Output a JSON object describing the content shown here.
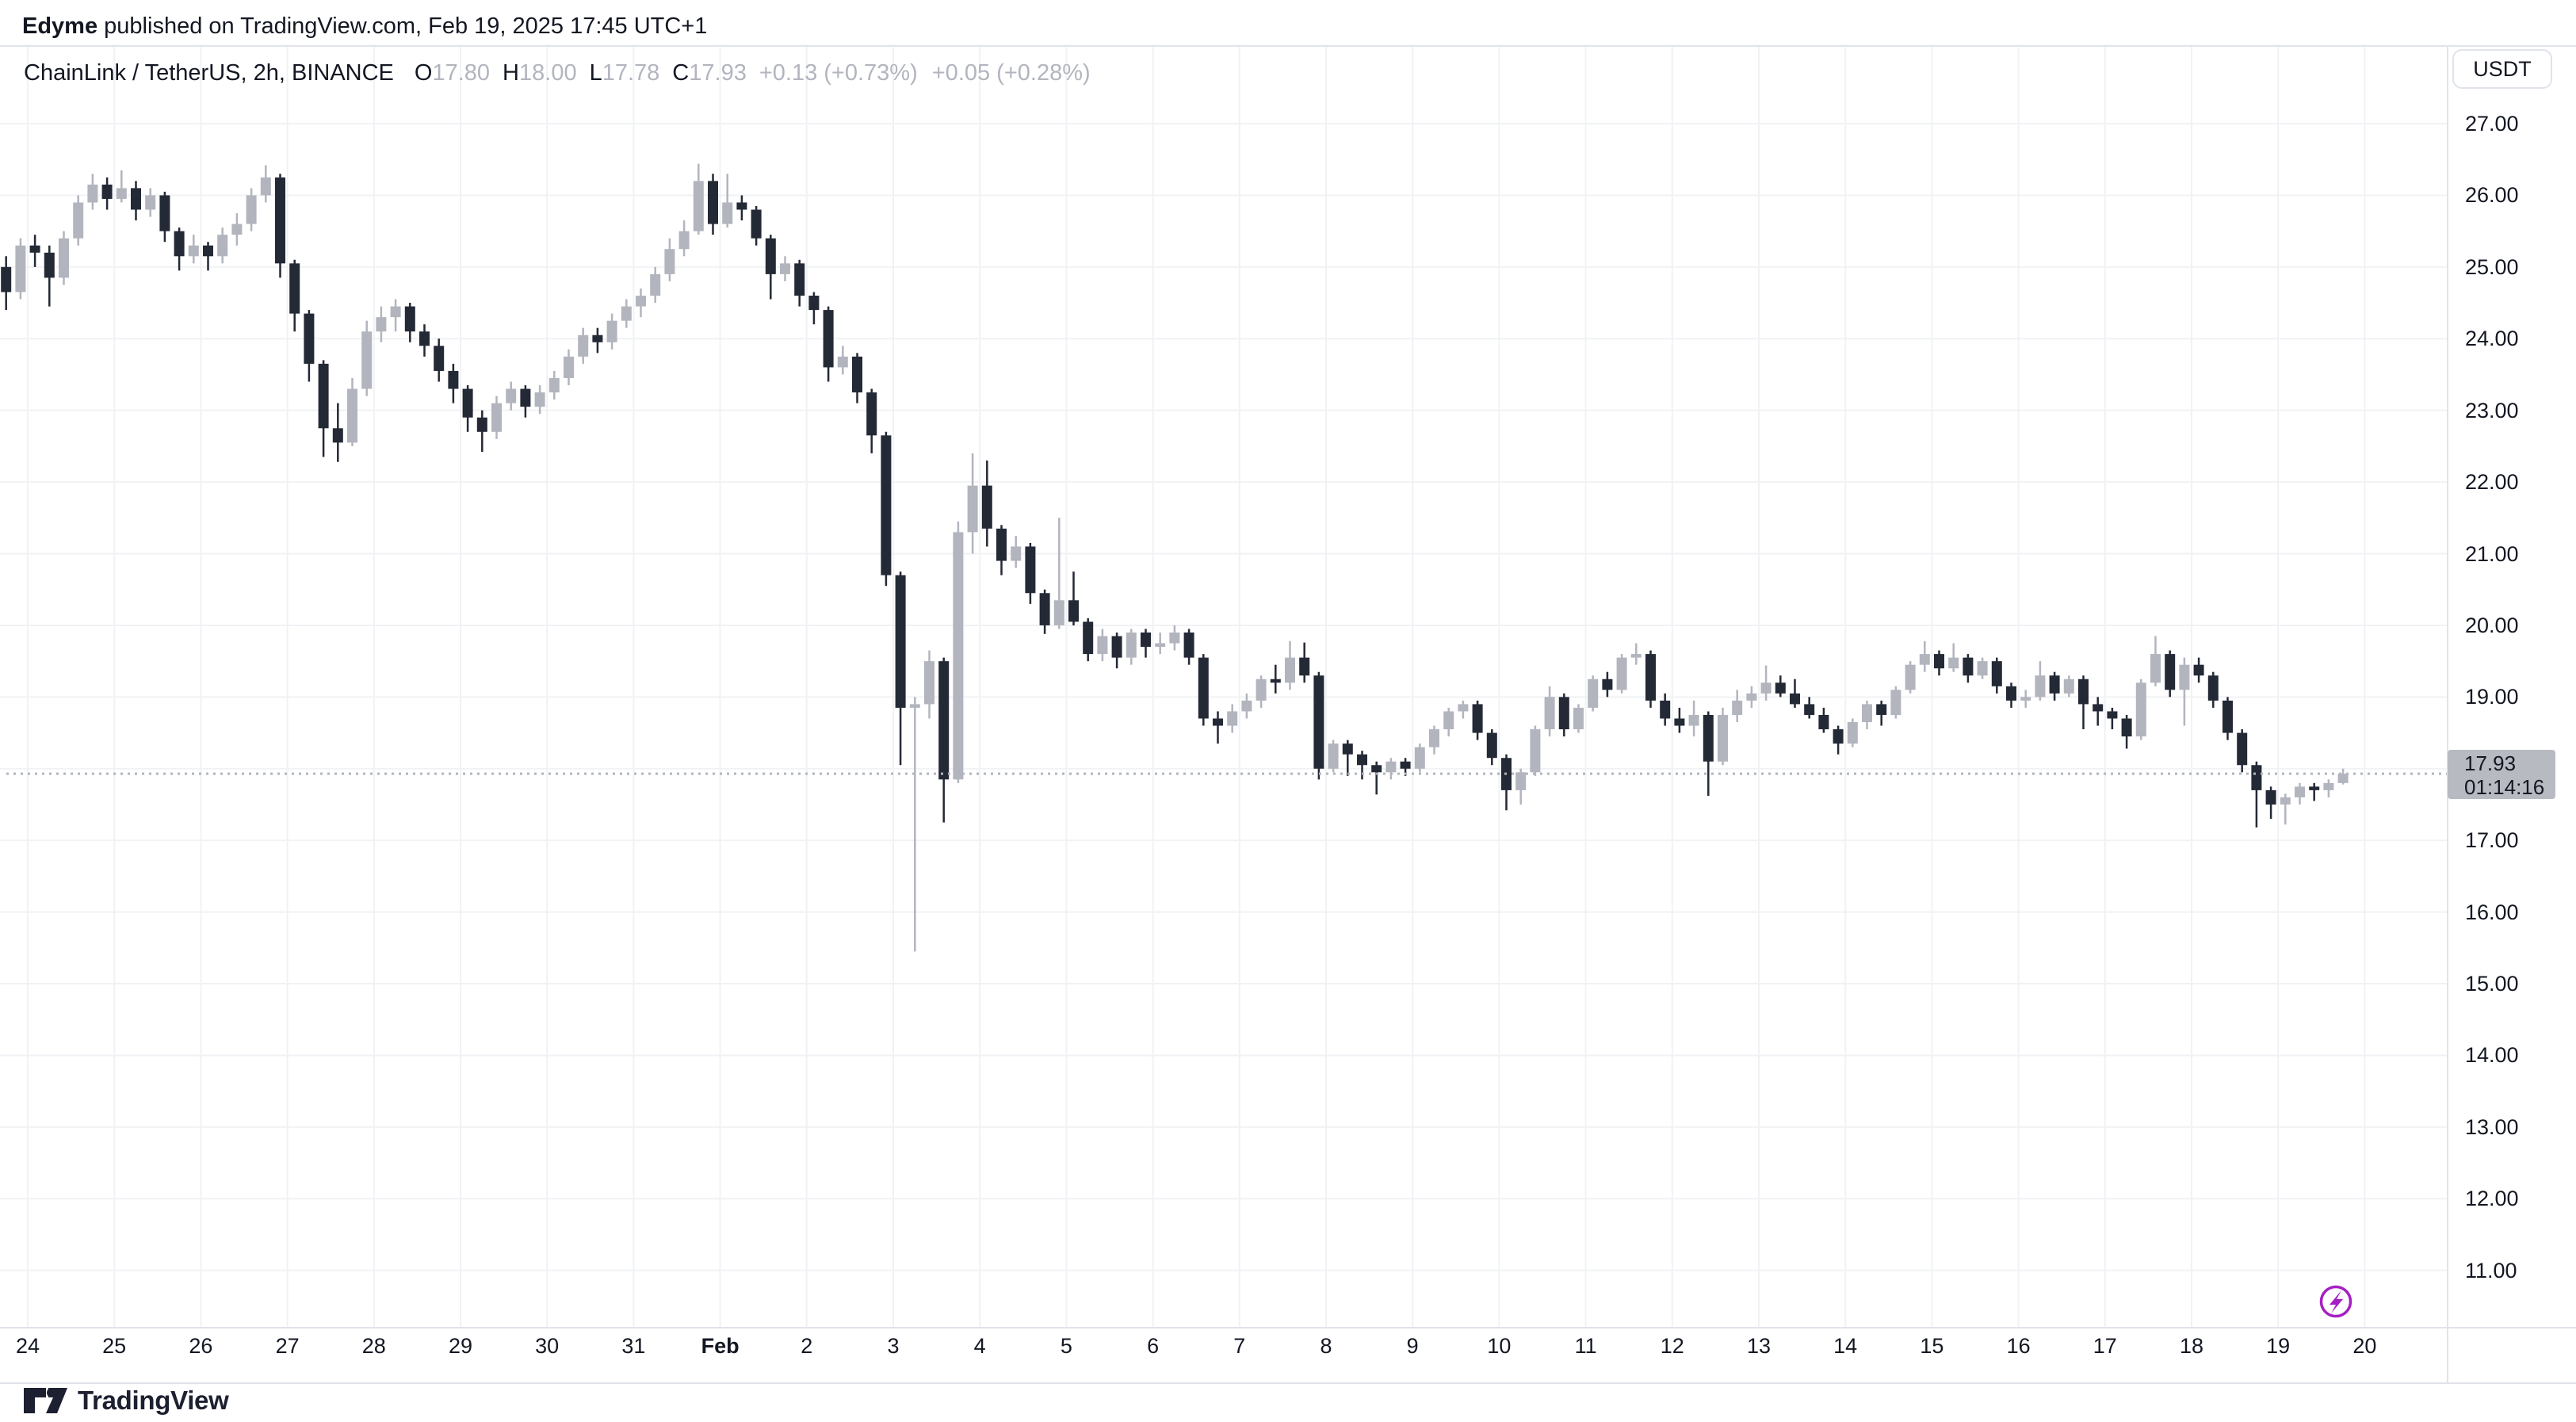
{
  "attribution": {
    "author": "Edyme",
    "rest": " published on TradingView.com, Feb 19, 2025 17:45 UTC+1"
  },
  "legend": {
    "symbol_title": "ChainLink / TetherUS, 2h, BINANCE",
    "ohlc": [
      {
        "label": "O",
        "value": "17.80"
      },
      {
        "label": "H",
        "value": "18.00"
      },
      {
        "label": "L",
        "value": "17.78"
      },
      {
        "label": "C",
        "value": "17.93"
      }
    ],
    "changes": [
      "+0.13 (+0.73%)",
      "+0.05 (+0.28%)"
    ]
  },
  "price_axis": {
    "currency_button_label": "USDT",
    "tick_labels": [
      "27.00",
      "26.00",
      "25.00",
      "24.00",
      "23.00",
      "22.00",
      "21.00",
      "20.00",
      "19.00",
      "18.00",
      "17.00",
      "16.00",
      "15.00",
      "14.00",
      "13.00",
      "12.00",
      "11.00"
    ],
    "current": {
      "price": "17.93",
      "countdown": "01:14:16"
    }
  },
  "time_axis": {
    "labels": [
      {
        "t": "24"
      },
      {
        "t": "25"
      },
      {
        "t": "26"
      },
      {
        "t": "27"
      },
      {
        "t": "28"
      },
      {
        "t": "29"
      },
      {
        "t": "30"
      },
      {
        "t": "31"
      },
      {
        "t": "Feb",
        "b": true
      },
      {
        "t": "2"
      },
      {
        "t": "3"
      },
      {
        "t": "4"
      },
      {
        "t": "5"
      },
      {
        "t": "6"
      },
      {
        "t": "7"
      },
      {
        "t": "8"
      },
      {
        "t": "9"
      },
      {
        "t": "10"
      },
      {
        "t": "11"
      },
      {
        "t": "12"
      },
      {
        "t": "13"
      },
      {
        "t": "14"
      },
      {
        "t": "15"
      },
      {
        "t": "16"
      },
      {
        "t": "17"
      },
      {
        "t": "18"
      },
      {
        "t": "19"
      },
      {
        "t": "20"
      }
    ]
  },
  "footer": {
    "logo_text": "TradingView"
  },
  "status_icon": {
    "name": "realtime-lightning",
    "color": "#a61fc4"
  },
  "colors": {
    "text": "#131722",
    "muted_value": "#b2b5be",
    "candle_up": "#b2b5be",
    "candle_down": "#242936",
    "grid": "#f0f2f5",
    "border": "#e0e3eb",
    "dotted_line": "#b2b5be",
    "badge_bg": "#b8bac2",
    "purple": "#a61fc4",
    "logo": "#1c2030"
  },
  "chart_data": {
    "type": "candlestick",
    "pair": "ChainLink / TetherUS",
    "exchange": "BINANCE",
    "interval": "2h",
    "quote_currency": "USDT",
    "current_price": 17.93,
    "countdown": "01:14:16",
    "current_candle": {
      "open": 17.8,
      "high": 18.0,
      "low": 17.78,
      "close": 17.93
    },
    "change_abs_pct": "+0.13 (+0.73%)",
    "change_2": "+0.05 (+0.28%)",
    "ylim": [
      11,
      27
    ],
    "y_tick_step": 1,
    "grid": true,
    "day_labels": [
      "24",
      "25",
      "26",
      "27",
      "28",
      "29",
      "30",
      "31",
      "Feb",
      "2",
      "3",
      "4",
      "5",
      "6",
      "7",
      "8",
      "9",
      "10",
      "11",
      "12",
      "13",
      "14",
      "15",
      "16",
      "17",
      "18",
      "19",
      "20"
    ],
    "candles_per_day": 6,
    "lead_in_candles": 3,
    "candles": [
      [
        24.45,
        25.2,
        23.95,
        25.0
      ],
      [
        25.0,
        25.15,
        24.4,
        24.65
      ],
      [
        24.65,
        25.4,
        24.55,
        25.3
      ],
      [
        25.3,
        25.45,
        25.0,
        25.2
      ],
      [
        25.2,
        25.3,
        24.45,
        24.85
      ],
      [
        24.85,
        25.5,
        24.75,
        25.4
      ],
      [
        25.4,
        26.0,
        25.3,
        25.9
      ],
      [
        25.9,
        26.3,
        25.8,
        26.15
      ],
      [
        26.15,
        26.25,
        25.8,
        25.95
      ],
      [
        25.95,
        26.35,
        25.9,
        26.1
      ],
      [
        26.1,
        26.2,
        25.65,
        25.8
      ],
      [
        25.8,
        26.1,
        25.7,
        26.0
      ],
      [
        26.0,
        26.05,
        25.35,
        25.5
      ],
      [
        25.5,
        25.55,
        24.95,
        25.15
      ],
      [
        25.15,
        25.45,
        25.05,
        25.3
      ],
      [
        25.3,
        25.35,
        24.95,
        25.15
      ],
      [
        25.15,
        25.55,
        25.05,
        25.45
      ],
      [
        25.45,
        25.75,
        25.3,
        25.6
      ],
      [
        25.6,
        26.1,
        25.5,
        26.0
      ],
      [
        26.0,
        26.42,
        25.9,
        26.25
      ],
      [
        26.25,
        26.3,
        24.85,
        25.05
      ],
      [
        25.05,
        25.1,
        24.1,
        24.35
      ],
      [
        24.35,
        24.4,
        23.4,
        23.65
      ],
      [
        23.65,
        23.7,
        22.35,
        22.75
      ],
      [
        22.75,
        23.1,
        22.28,
        22.55
      ],
      [
        22.55,
        23.45,
        22.5,
        23.3
      ],
      [
        23.3,
        24.25,
        23.2,
        24.1
      ],
      [
        24.1,
        24.45,
        23.95,
        24.3
      ],
      [
        24.3,
        24.55,
        24.1,
        24.45
      ],
      [
        24.45,
        24.5,
        23.95,
        24.1
      ],
      [
        24.1,
        24.2,
        23.75,
        23.9
      ],
      [
        23.9,
        24.0,
        23.4,
        23.55
      ],
      [
        23.55,
        23.65,
        23.1,
        23.3
      ],
      [
        23.3,
        23.35,
        22.7,
        22.9
      ],
      [
        22.9,
        23.0,
        22.42,
        22.7
      ],
      [
        22.7,
        23.2,
        22.6,
        23.1
      ],
      [
        23.1,
        23.4,
        23.0,
        23.3
      ],
      [
        23.3,
        23.35,
        22.9,
        23.05
      ],
      [
        23.05,
        23.35,
        22.95,
        23.25
      ],
      [
        23.25,
        23.55,
        23.15,
        23.45
      ],
      [
        23.45,
        23.85,
        23.35,
        23.75
      ],
      [
        23.75,
        24.15,
        23.65,
        24.05
      ],
      [
        24.05,
        24.15,
        23.8,
        23.95
      ],
      [
        23.95,
        24.35,
        23.85,
        24.25
      ],
      [
        24.25,
        24.55,
        24.15,
        24.45
      ],
      [
        24.45,
        24.7,
        24.3,
        24.6
      ],
      [
        24.6,
        25.0,
        24.5,
        24.9
      ],
      [
        24.9,
        25.4,
        24.8,
        25.25
      ],
      [
        25.25,
        25.65,
        25.15,
        25.5
      ],
      [
        25.5,
        26.44,
        25.45,
        26.2
      ],
      [
        26.2,
        26.3,
        25.45,
        25.6
      ],
      [
        25.6,
        26.3,
        25.55,
        25.9
      ],
      [
        25.9,
        26.0,
        25.65,
        25.8
      ],
      [
        25.8,
        25.85,
        25.3,
        25.4
      ],
      [
        25.4,
        25.45,
        24.55,
        24.9
      ],
      [
        24.9,
        25.15,
        24.8,
        25.05
      ],
      [
        25.05,
        25.1,
        24.45,
        24.6
      ],
      [
        24.6,
        24.65,
        24.2,
        24.4
      ],
      [
        24.4,
        24.45,
        23.4,
        23.6
      ],
      [
        23.6,
        23.9,
        23.5,
        23.75
      ],
      [
        23.75,
        23.8,
        23.1,
        23.25
      ],
      [
        23.25,
        23.3,
        22.4,
        22.65
      ],
      [
        22.65,
        22.7,
        20.55,
        20.7
      ],
      [
        20.7,
        20.75,
        18.05,
        18.85
      ],
      [
        18.85,
        19.0,
        15.45,
        18.9
      ],
      [
        18.9,
        19.65,
        18.7,
        19.5
      ],
      [
        19.5,
        19.55,
        17.25,
        17.85
      ],
      [
        17.85,
        21.45,
        17.8,
        21.3
      ],
      [
        21.3,
        22.4,
        21.0,
        21.95
      ],
      [
        21.95,
        22.3,
        21.1,
        21.35
      ],
      [
        21.35,
        21.4,
        20.7,
        20.9
      ],
      [
        20.9,
        21.25,
        20.8,
        21.1
      ],
      [
        21.1,
        21.15,
        20.3,
        20.45
      ],
      [
        20.45,
        20.5,
        19.88,
        20.0
      ],
      [
        20.0,
        21.5,
        19.95,
        20.35
      ],
      [
        20.35,
        20.75,
        20.0,
        20.05
      ],
      [
        20.05,
        20.1,
        19.5,
        19.6
      ],
      [
        19.6,
        19.95,
        19.5,
        19.85
      ],
      [
        19.85,
        19.9,
        19.4,
        19.55
      ],
      [
        19.55,
        19.95,
        19.45,
        19.9
      ],
      [
        19.9,
        19.95,
        19.55,
        19.7
      ],
      [
        19.7,
        19.9,
        19.6,
        19.75
      ],
      [
        19.75,
        20.0,
        19.65,
        19.9
      ],
      [
        19.9,
        19.95,
        19.45,
        19.55
      ],
      [
        19.55,
        19.6,
        18.6,
        18.7
      ],
      [
        18.7,
        18.8,
        18.35,
        18.6
      ],
      [
        18.6,
        18.9,
        18.5,
        18.8
      ],
      [
        18.8,
        19.05,
        18.7,
        18.95
      ],
      [
        18.95,
        19.3,
        18.85,
        19.25
      ],
      [
        19.25,
        19.45,
        19.05,
        19.2
      ],
      [
        19.2,
        19.78,
        19.1,
        19.55
      ],
      [
        19.55,
        19.76,
        19.2,
        19.3
      ],
      [
        19.3,
        19.35,
        17.85,
        18.0
      ],
      [
        18.0,
        18.4,
        17.95,
        18.35
      ],
      [
        18.35,
        18.4,
        17.9,
        18.2
      ],
      [
        18.2,
        18.25,
        17.85,
        18.05
      ],
      [
        18.05,
        18.1,
        17.64,
        17.95
      ],
      [
        17.95,
        18.15,
        17.85,
        18.1
      ],
      [
        18.1,
        18.15,
        17.9,
        18.0
      ],
      [
        18.0,
        18.35,
        17.95,
        18.3
      ],
      [
        18.3,
        18.6,
        18.2,
        18.55
      ],
      [
        18.55,
        18.85,
        18.45,
        18.8
      ],
      [
        18.8,
        18.95,
        18.7,
        18.9
      ],
      [
        18.9,
        18.95,
        18.4,
        18.5
      ],
      [
        18.5,
        18.55,
        18.05,
        18.15
      ],
      [
        18.15,
        18.2,
        17.42,
        17.7
      ],
      [
        17.7,
        18.0,
        17.5,
        17.95
      ],
      [
        17.95,
        18.6,
        17.9,
        18.55
      ],
      [
        18.55,
        19.15,
        18.45,
        19.0
      ],
      [
        19.0,
        19.05,
        18.45,
        18.55
      ],
      [
        18.55,
        18.9,
        18.5,
        18.85
      ],
      [
        18.85,
        19.3,
        18.8,
        19.25
      ],
      [
        19.25,
        19.35,
        19.0,
        19.1
      ],
      [
        19.1,
        19.6,
        19.05,
        19.55
      ],
      [
        19.55,
        19.75,
        19.45,
        19.6
      ],
      [
        19.6,
        19.65,
        18.85,
        18.95
      ],
      [
        18.95,
        19.05,
        18.6,
        18.7
      ],
      [
        18.7,
        18.85,
        18.5,
        18.6
      ],
      [
        18.6,
        18.95,
        18.45,
        18.75
      ],
      [
        18.75,
        18.8,
        17.62,
        18.1
      ],
      [
        18.1,
        18.85,
        18.05,
        18.75
      ],
      [
        18.75,
        19.1,
        18.65,
        18.95
      ],
      [
        18.95,
        19.15,
        18.85,
        19.05
      ],
      [
        19.05,
        19.44,
        18.95,
        19.2
      ],
      [
        19.2,
        19.3,
        19.0,
        19.05
      ],
      [
        19.05,
        19.25,
        18.85,
        18.9
      ],
      [
        18.9,
        19.0,
        18.7,
        18.75
      ],
      [
        18.75,
        18.85,
        18.5,
        18.55
      ],
      [
        18.55,
        18.6,
        18.2,
        18.35
      ],
      [
        18.35,
        18.7,
        18.3,
        18.65
      ],
      [
        18.65,
        18.95,
        18.55,
        18.9
      ],
      [
        18.9,
        18.95,
        18.6,
        18.75
      ],
      [
        18.75,
        19.15,
        18.7,
        19.1
      ],
      [
        19.1,
        19.5,
        19.05,
        19.45
      ],
      [
        19.45,
        19.78,
        19.35,
        19.6
      ],
      [
        19.6,
        19.65,
        19.3,
        19.4
      ],
      [
        19.4,
        19.75,
        19.35,
        19.55
      ],
      [
        19.55,
        19.6,
        19.2,
        19.3
      ],
      [
        19.3,
        19.55,
        19.25,
        19.5
      ],
      [
        19.5,
        19.55,
        19.05,
        19.15
      ],
      [
        19.15,
        19.2,
        18.85,
        18.95
      ],
      [
        18.95,
        19.1,
        18.85,
        19.0
      ],
      [
        19.0,
        19.5,
        18.95,
        19.3
      ],
      [
        19.3,
        19.35,
        18.95,
        19.05
      ],
      [
        19.05,
        19.3,
        19.0,
        19.25
      ],
      [
        19.25,
        19.3,
        18.55,
        18.9
      ],
      [
        18.9,
        19.0,
        18.6,
        18.8
      ],
      [
        18.8,
        18.85,
        18.55,
        18.7
      ],
      [
        18.7,
        18.75,
        18.28,
        18.45
      ],
      [
        18.45,
        19.25,
        18.4,
        19.2
      ],
      [
        19.2,
        19.85,
        19.15,
        19.6
      ],
      [
        19.6,
        19.65,
        19.0,
        19.1
      ],
      [
        19.1,
        19.55,
        18.6,
        19.45
      ],
      [
        19.45,
        19.55,
        19.2,
        19.3
      ],
      [
        19.3,
        19.35,
        18.85,
        18.95
      ],
      [
        18.95,
        19.0,
        18.4,
        18.5
      ],
      [
        18.5,
        18.55,
        17.95,
        18.05
      ],
      [
        18.05,
        18.1,
        17.18,
        17.7
      ],
      [
        17.7,
        17.75,
        17.3,
        17.5
      ],
      [
        17.5,
        17.65,
        17.22,
        17.6
      ],
      [
        17.6,
        17.8,
        17.5,
        17.75
      ],
      [
        17.75,
        17.8,
        17.55,
        17.7
      ],
      [
        17.7,
        17.85,
        17.6,
        17.8
      ],
      [
        17.8,
        18.0,
        17.78,
        17.93
      ]
    ]
  }
}
